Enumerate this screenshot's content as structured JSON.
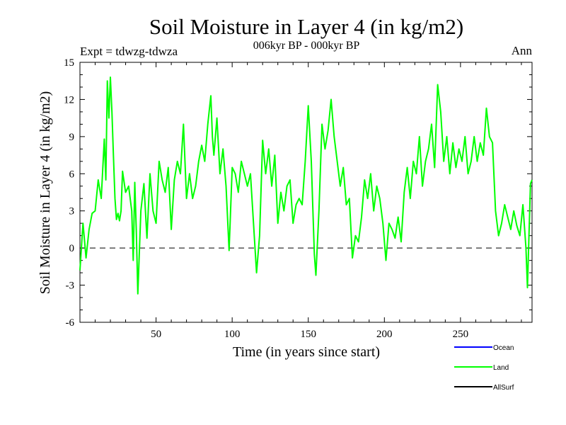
{
  "chart_data": {
    "type": "line",
    "title": "Soil Moisture in Layer 4 (in kg/m2)",
    "subtitle": "006kyr BP - 000kyr BP",
    "experiment_label": "Expt = tdwzg-tdwza",
    "season_label": "Ann",
    "xlabel": "Time (in years since start)",
    "ylabel": "Soil Moisture in Layer 4 (in kg/m2)",
    "xlim": [
      0,
      297
    ],
    "ylim": [
      -6,
      15
    ],
    "x_ticks": [
      50,
      100,
      150,
      200,
      250
    ],
    "y_ticks": [
      -6,
      -3,
      0,
      3,
      6,
      9,
      12,
      15
    ],
    "zero_line": true,
    "legend_position": "bottom-right",
    "legend": [
      {
        "name": "Ocean",
        "color": "#0000ff"
      },
      {
        "name": "Land",
        "color": "#00ff00"
      },
      {
        "name": "AllSurf",
        "color": "#000000"
      }
    ],
    "series": [
      {
        "name": "Land",
        "color": "#00ff00",
        "points": [
          [
            0,
            -1.8
          ],
          [
            2,
            2.0
          ],
          [
            4,
            -0.8
          ],
          [
            6,
            1.5
          ],
          [
            8,
            2.8
          ],
          [
            10,
            3.0
          ],
          [
            12,
            5.5
          ],
          [
            14,
            4.0
          ],
          [
            16,
            8.8
          ],
          [
            17,
            5.5
          ],
          [
            18,
            13.5
          ],
          [
            19,
            10.5
          ],
          [
            20,
            13.8
          ],
          [
            21,
            11.0
          ],
          [
            22,
            7.5
          ],
          [
            23,
            4.0
          ],
          [
            24,
            2.3
          ],
          [
            25,
            2.8
          ],
          [
            26,
            2.2
          ],
          [
            27,
            3.0
          ],
          [
            28,
            6.2
          ],
          [
            30,
            4.5
          ],
          [
            32,
            5.0
          ],
          [
            34,
            3.0
          ],
          [
            35,
            -1.0
          ],
          [
            36,
            5.3
          ],
          [
            37,
            1.5
          ],
          [
            38,
            -3.7
          ],
          [
            40,
            3.0
          ],
          [
            42,
            5.2
          ],
          [
            44,
            0.8
          ],
          [
            46,
            6.0
          ],
          [
            48,
            3.0
          ],
          [
            50,
            2.0
          ],
          [
            52,
            7.0
          ],
          [
            54,
            5.5
          ],
          [
            56,
            4.5
          ],
          [
            58,
            6.5
          ],
          [
            60,
            1.5
          ],
          [
            62,
            5.5
          ],
          [
            64,
            7.0
          ],
          [
            66,
            6.0
          ],
          [
            68,
            10.0
          ],
          [
            70,
            4.0
          ],
          [
            72,
            6.0
          ],
          [
            74,
            4.0
          ],
          [
            76,
            5.0
          ],
          [
            78,
            7.0
          ],
          [
            80,
            8.3
          ],
          [
            82,
            7.0
          ],
          [
            84,
            10.0
          ],
          [
            86,
            12.3
          ],
          [
            87,
            9.0
          ],
          [
            88,
            7.5
          ],
          [
            90,
            10.5
          ],
          [
            92,
            6.0
          ],
          [
            94,
            8.0
          ],
          [
            96,
            5.0
          ],
          [
            98,
            -0.2
          ],
          [
            100,
            6.5
          ],
          [
            102,
            6.0
          ],
          [
            104,
            4.5
          ],
          [
            106,
            7.0
          ],
          [
            108,
            6.0
          ],
          [
            110,
            5.0
          ],
          [
            112,
            6.0
          ],
          [
            114,
            2.0
          ],
          [
            116,
            -2.0
          ],
          [
            118,
            1.0
          ],
          [
            120,
            8.7
          ],
          [
            122,
            6.0
          ],
          [
            124,
            8.0
          ],
          [
            126,
            5.0
          ],
          [
            128,
            7.5
          ],
          [
            130,
            2.0
          ],
          [
            132,
            4.5
          ],
          [
            134,
            3.0
          ],
          [
            136,
            5.0
          ],
          [
            138,
            5.5
          ],
          [
            140,
            2.0
          ],
          [
            142,
            3.5
          ],
          [
            144,
            4.0
          ],
          [
            146,
            3.5
          ],
          [
            148,
            7.0
          ],
          [
            150,
            11.5
          ],
          [
            152,
            7.0
          ],
          [
            154,
            -0.5
          ],
          [
            155,
            -2.2
          ],
          [
            157,
            3.0
          ],
          [
            159,
            10.0
          ],
          [
            161,
            8.0
          ],
          [
            163,
            9.5
          ],
          [
            165,
            12.0
          ],
          [
            167,
            9.0
          ],
          [
            169,
            7.0
          ],
          [
            171,
            5.0
          ],
          [
            173,
            6.5
          ],
          [
            175,
            3.5
          ],
          [
            177,
            4.0
          ],
          [
            179,
            -0.8
          ],
          [
            181,
            1.0
          ],
          [
            183,
            0.5
          ],
          [
            185,
            2.5
          ],
          [
            187,
            5.5
          ],
          [
            189,
            4.0
          ],
          [
            191,
            6.0
          ],
          [
            193,
            3.0
          ],
          [
            195,
            5.0
          ],
          [
            197,
            4.0
          ],
          [
            199,
            2.0
          ],
          [
            201,
            -1.0
          ],
          [
            203,
            2.0
          ],
          [
            205,
            1.5
          ],
          [
            207,
            0.8
          ],
          [
            209,
            2.5
          ],
          [
            211,
            0.5
          ],
          [
            213,
            4.5
          ],
          [
            215,
            6.5
          ],
          [
            217,
            4.0
          ],
          [
            219,
            7.0
          ],
          [
            221,
            6.0
          ],
          [
            223,
            9.0
          ],
          [
            225,
            5.0
          ],
          [
            227,
            7.0
          ],
          [
            229,
            8.0
          ],
          [
            231,
            10.0
          ],
          [
            233,
            6.5
          ],
          [
            235,
            13.2
          ],
          [
            237,
            11.0
          ],
          [
            239,
            7.0
          ],
          [
            241,
            9.0
          ],
          [
            243,
            6.0
          ],
          [
            245,
            8.5
          ],
          [
            247,
            6.5
          ],
          [
            249,
            8.0
          ],
          [
            251,
            7.0
          ],
          [
            253,
            9.0
          ],
          [
            255,
            6.0
          ],
          [
            257,
            7.0
          ],
          [
            259,
            9.0
          ],
          [
            261,
            7.0
          ],
          [
            263,
            8.5
          ],
          [
            265,
            7.5
          ],
          [
            267,
            11.3
          ],
          [
            269,
            9.0
          ],
          [
            271,
            8.5
          ],
          [
            273,
            3.0
          ],
          [
            275,
            1.0
          ],
          [
            277,
            2.0
          ],
          [
            279,
            3.5
          ],
          [
            281,
            2.5
          ],
          [
            283,
            1.5
          ],
          [
            285,
            3.0
          ],
          [
            287,
            1.8
          ],
          [
            289,
            1.0
          ],
          [
            291,
            3.5
          ],
          [
            293,
            0.0
          ],
          [
            294,
            -3.2
          ],
          [
            296,
            5.2
          ],
          [
            297,
            5.5
          ]
        ]
      }
    ]
  }
}
